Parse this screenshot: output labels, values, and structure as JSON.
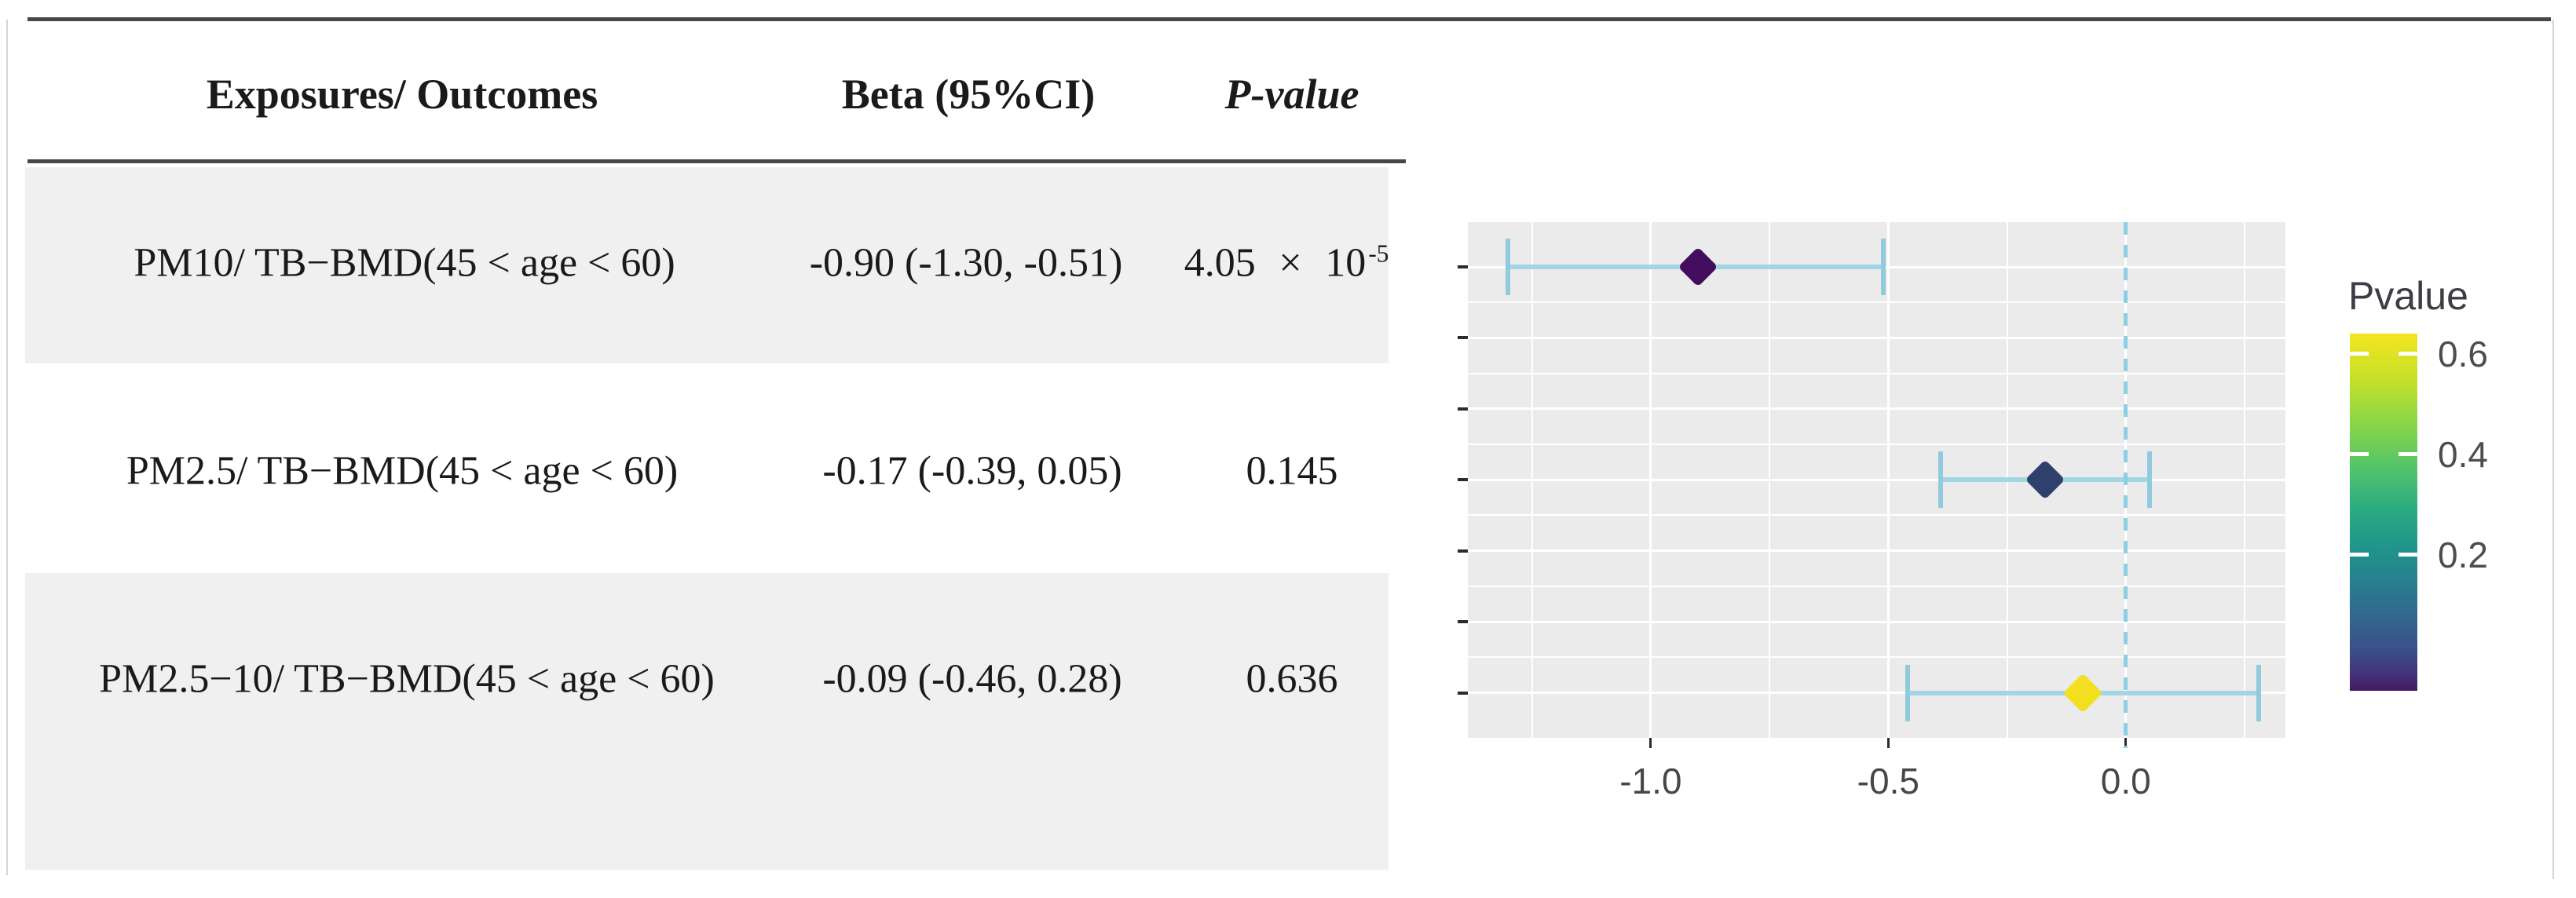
{
  "table": {
    "headers": {
      "col1": "Exposures/ Outcomes",
      "col2": "Beta (95%CI)",
      "col3": "P-value"
    },
    "rows": [
      {
        "exposure": "PM10/ TB−BMD(45 < age < 60)",
        "beta_ci": "-0.90 (-1.30, -0.51)",
        "p_main": "4.05 × 10",
        "p_exp": "-5"
      },
      {
        "exposure": "PM2.5/ TB−BMD(45 < age < 60)",
        "beta_ci": "-0.17 (-0.39, 0.05)",
        "p_main": "0.145"
      },
      {
        "exposure": "PM2.5−10/ TB−BMD(45 < age < 60)",
        "beta_ci": "-0.09 (-0.46, 0.28)",
        "p_main": "0.636"
      }
    ]
  },
  "chart_data": {
    "type": "scatter",
    "subtype": "forest-plot",
    "title": "",
    "xlabel": "",
    "ylabel": "",
    "xlim": [
      -1.385,
      0.336
    ],
    "x_ticks": [
      -1.0,
      -0.5,
      0.0
    ],
    "x_tick_labels": [
      "-1.0",
      "-0.5",
      "0.0"
    ],
    "x_minor_gridlines": [
      -1.25,
      -0.75,
      -0.25,
      0.25
    ],
    "n_y_categories": 7,
    "grid": true,
    "refline_x": 0,
    "points": [
      {
        "label": "PM10/ TB−BMD(45 < age < 60)",
        "beta": -0.9,
        "ci_low": -1.3,
        "ci_high": -0.51,
        "p": 4.05e-05,
        "y_index": 0,
        "color": "#440c5e"
      },
      {
        "label": "PM2.5/ TB−BMD(45 < age < 60)",
        "beta": -0.17,
        "ci_low": -0.39,
        "ci_high": 0.05,
        "p": 0.145,
        "y_index": 3,
        "color": "#30406c"
      },
      {
        "label": "PM2.5−10/ TB−BMD(45 < age < 60)",
        "beta": -0.09,
        "ci_low": -0.46,
        "ci_high": 0.28,
        "p": 0.636,
        "y_index": 6,
        "color": "#f3df20"
      }
    ],
    "legend": {
      "title": "Pvalue",
      "position": "right",
      "tick_labels": [
        "0.6",
        "0.4",
        "0.2"
      ],
      "tick_values": [
        0.6,
        0.4,
        0.2
      ],
      "scale_top": 0.64,
      "scale_bottom": -0.07,
      "colormap": "viridis (yellow top → purple bottom)"
    }
  },
  "colors": {
    "stripe": "#f0f0f0",
    "rule": "#474747",
    "table_text": "#1a1a1a",
    "panel_bg": "#ebebeb",
    "grid": "#ffffff",
    "errorbar": "#a3d6e5",
    "errorbar_cap": "#8fcbdc",
    "refline": "#8ccee6",
    "axis_text": "#474747",
    "tick_mark": "#2b2b2b",
    "legend_title_text": "#3d3d46",
    "page_border": "#d6d6d6"
  }
}
